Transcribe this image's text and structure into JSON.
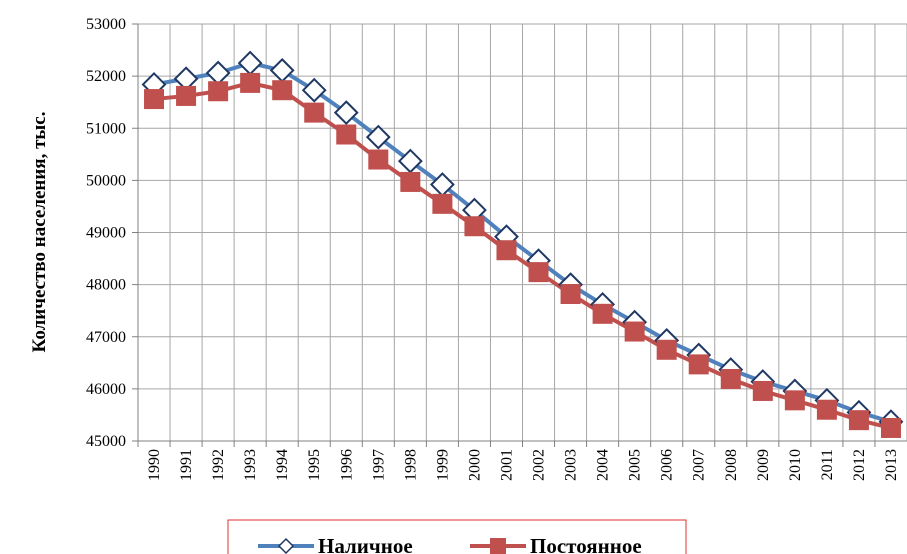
{
  "chart_data": {
    "type": "line",
    "y_label": "Количество населения, тыс.",
    "categories": [
      "1990",
      "1991",
      "1992",
      "1993",
      "1994",
      "1995",
      "1996",
      "1997",
      "1998",
      "1999",
      "2000",
      "2001",
      "2002",
      "2003",
      "2004",
      "2005",
      "2006",
      "2007",
      "2008",
      "2009",
      "2010",
      "2011",
      "2012",
      "2013"
    ],
    "series": [
      {
        "name": "Наличное",
        "color": "#4f81bd",
        "marker": "diamond",
        "values": [
          51840,
          51950,
          52060,
          52250,
          52110,
          51730,
          51300,
          50830,
          50370,
          49920,
          49430,
          48920,
          48460,
          48000,
          47620,
          47280,
          46930,
          46650,
          46370,
          46140,
          45960,
          45780,
          45550,
          45370
        ]
      },
      {
        "name": "Постоянное",
        "color": "#c0504d",
        "marker": "square",
        "values": [
          51560,
          51620,
          51710,
          51870,
          51730,
          51300,
          50880,
          50400,
          49970,
          49550,
          49120,
          48660,
          48240,
          47820,
          47440,
          47100,
          46750,
          46470,
          46190,
          45960,
          45780,
          45600,
          45400,
          45250
        ]
      }
    ],
    "ylim": [
      45000,
      53000
    ],
    "yticks": [
      45000,
      46000,
      47000,
      48000,
      49000,
      50000,
      51000,
      52000,
      53000
    ],
    "grid": true,
    "legend": "bottom"
  }
}
